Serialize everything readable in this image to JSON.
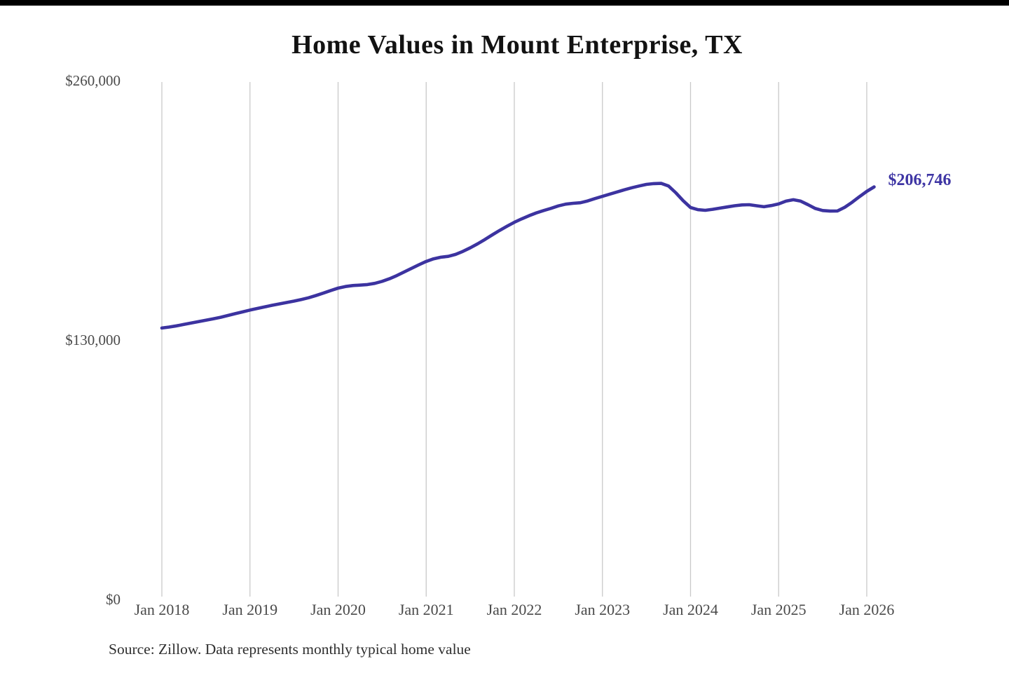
{
  "page": {
    "title": "Home Values in Mount Enterprise, TX",
    "source_note": "Source: Zillow. Data represents monthly typical home value"
  },
  "chart_data": {
    "type": "line",
    "title": "Home Values in Mount Enterprise, TX",
    "series_name": "Monthly typical home value",
    "x_tick_labels": [
      "Jan 2018",
      "Jan 2019",
      "Jan 2020",
      "Jan 2021",
      "Jan 2022",
      "Jan 2023",
      "Jan 2024",
      "Jan 2025",
      "Jan 2026"
    ],
    "y_ticks": [
      {
        "label": "$0",
        "value": 0
      },
      {
        "label": "$130,000",
        "value": 130000
      },
      {
        "label": "$260,000",
        "value": 260000
      }
    ],
    "ylim": [
      0,
      260000
    ],
    "grid": "vertical-only",
    "legend": "none",
    "line_color": "#3c33a0",
    "grid_color": "#c9c9c9",
    "end_label": "$206,746",
    "end_value": 206746,
    "x_start_month": "Jan 2018",
    "x_end_month": "Feb 2026",
    "months_per_point": 1,
    "values": [
      136000,
      136500,
      137100,
      137800,
      138500,
      139200,
      139900,
      140600,
      141400,
      142300,
      143200,
      144100,
      145000,
      145800,
      146600,
      147400,
      148100,
      148800,
      149500,
      150300,
      151200,
      152300,
      153500,
      154800,
      156000,
      156800,
      157300,
      157500,
      157800,
      158400,
      159400,
      160700,
      162300,
      164100,
      165900,
      167700,
      169400,
      170700,
      171500,
      171900,
      172900,
      174400,
      176200,
      178200,
      180400,
      182700,
      184900,
      187000,
      189000,
      190700,
      192300,
      193700,
      194900,
      196000,
      197200,
      198100,
      198500,
      198800,
      199700,
      200900,
      202000,
      203100,
      204200,
      205300,
      206300,
      207200,
      208000,
      208400,
      208500,
      207200,
      203800,
      199800,
      196400,
      195300,
      195000,
      195500,
      196100,
      196700,
      197300,
      197700,
      197800,
      197300,
      196800,
      197400,
      198200,
      199600,
      200300,
      199600,
      197800,
      195900,
      194900,
      194600,
      194700,
      196500,
      199000,
      201800,
      204500,
      206746
    ]
  }
}
